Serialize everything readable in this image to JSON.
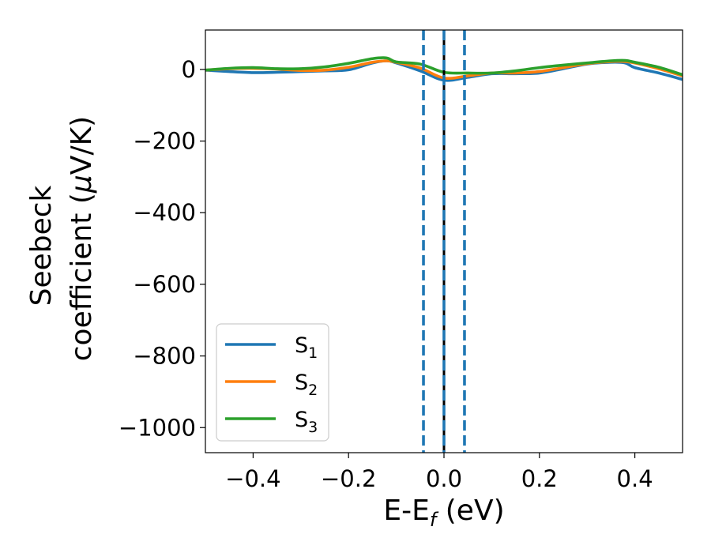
{
  "chart_data": {
    "type": "line",
    "title": "",
    "xlabel": {
      "main": "E-E",
      "sub": "f",
      "unit": " (eV)"
    },
    "ylabel": {
      "line1": "Seebeck",
      "line2_text": "coefficient  (",
      "mu": "μ",
      "unit": "V/K)"
    },
    "xlim": [
      -0.5,
      0.5
    ],
    "ylim": [
      -1070,
      110
    ],
    "xticks": [
      -0.4,
      -0.2,
      0.0,
      0.2,
      0.4
    ],
    "xtick_labels": [
      "−0.4",
      "−0.2",
      "0.0",
      "0.2",
      "0.4"
    ],
    "yticks": [
      0,
      -200,
      -400,
      -600,
      -800,
      -1000
    ],
    "ytick_labels": [
      "0",
      "−200",
      "−400",
      "−600",
      "−800",
      "−1000"
    ],
    "grid": false,
    "legend_position": "lower-left",
    "vlines": [
      {
        "x": 0.0,
        "style": "solid",
        "color": "#000000"
      },
      {
        "x": -0.043,
        "style": "dashed",
        "color": "#1f77b4"
      },
      {
        "x": 0.0,
        "style": "dashed",
        "color": "#1f77b4"
      },
      {
        "x": 0.043,
        "style": "dashed",
        "color": "#1f77b4"
      }
    ],
    "series": [
      {
        "name": "S",
        "sub": "1",
        "color": "#1f77b4",
        "x": [
          -0.5,
          -0.45,
          -0.4,
          -0.35,
          -0.3,
          -0.25,
          -0.2,
          -0.15,
          -0.12,
          -0.1,
          -0.05,
          0.0,
          0.05,
          0.1,
          0.15,
          0.2,
          0.25,
          0.3,
          0.35,
          0.38,
          0.4,
          0.45,
          0.5
        ],
        "y": [
          -2,
          -6,
          -9,
          -8,
          -6,
          -4,
          -1,
          18,
          24,
          18,
          -4,
          -30,
          -22,
          -12,
          -12,
          -10,
          2,
          15,
          20,
          18,
          5,
          -10,
          -28
        ]
      },
      {
        "name": "S",
        "sub": "2",
        "color": "#ff7f0e",
        "x": [
          -0.5,
          -0.45,
          -0.4,
          -0.35,
          -0.3,
          -0.25,
          -0.2,
          -0.15,
          -0.12,
          -0.1,
          -0.05,
          0.0,
          0.05,
          0.1,
          0.15,
          0.2,
          0.25,
          0.3,
          0.35,
          0.38,
          0.4,
          0.45,
          0.5
        ],
        "y": [
          -2,
          2,
          3,
          1,
          -3,
          -2,
          6,
          20,
          24,
          20,
          4,
          -24,
          -18,
          -10,
          -10,
          -6,
          5,
          16,
          22,
          22,
          18,
          2,
          -18
        ]
      },
      {
        "name": "S",
        "sub": "3",
        "color": "#2ca02c",
        "x": [
          -0.5,
          -0.45,
          -0.4,
          -0.35,
          -0.3,
          -0.25,
          -0.2,
          -0.15,
          -0.12,
          -0.1,
          -0.05,
          0.0,
          0.05,
          0.1,
          0.15,
          0.2,
          0.25,
          0.3,
          0.35,
          0.38,
          0.4,
          0.45,
          0.5
        ],
        "y": [
          -2,
          3,
          5,
          2,
          2,
          7,
          17,
          30,
          32,
          21,
          15,
          -8,
          -10,
          -10,
          -4,
          5,
          12,
          18,
          24,
          25,
          20,
          6,
          -15
        ]
      }
    ]
  }
}
